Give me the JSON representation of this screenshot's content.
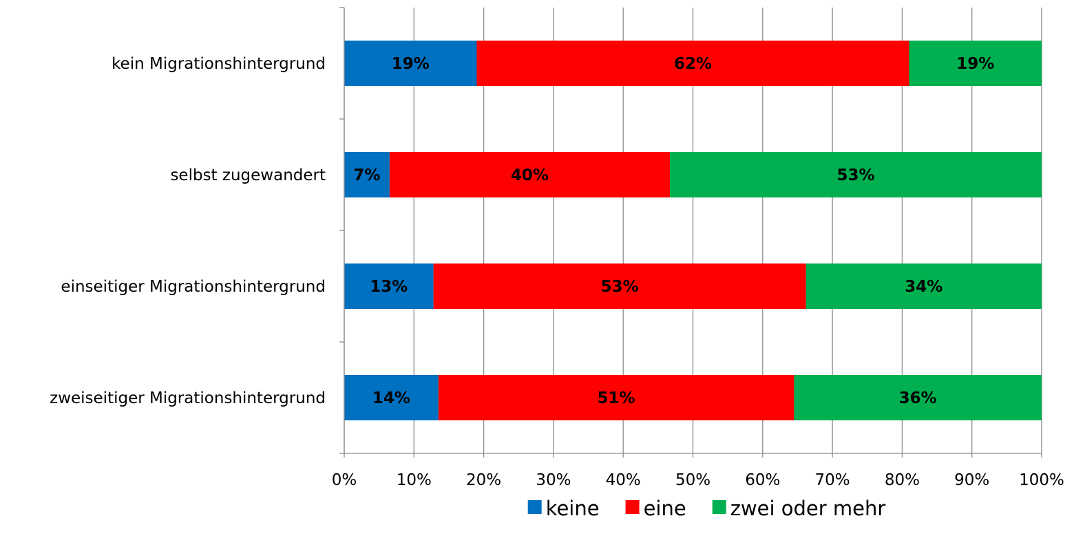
{
  "chart_data": {
    "type": "bar",
    "orientation": "horizontal",
    "stacked": true,
    "categories": [
      "kein Migrationshintergrund",
      "selbst zugewandert",
      "einseitiger Migrationshintergrund",
      "zweiseitiger Migrationshintergrund"
    ],
    "series": [
      {
        "name": "keine",
        "color": "#0070c0",
        "values": [
          19,
          6.5,
          12.8,
          13.5
        ],
        "labels": [
          "19%",
          "7%",
          "13%",
          "14%"
        ]
      },
      {
        "name": "eine",
        "color": "#ff0000",
        "values": [
          62,
          40.2,
          53.4,
          51
        ],
        "labels": [
          "62%",
          "40%",
          "53%",
          "51%"
        ]
      },
      {
        "name": "zwei oder mehr",
        "color": "#00b050",
        "values": [
          19,
          53.3,
          33.8,
          35.5
        ],
        "labels": [
          "19%",
          "53%",
          "34%",
          "36%"
        ]
      }
    ],
    "x_ticks": [
      "0%",
      "10%",
      "20%",
      "30%",
      "40%",
      "50%",
      "60%",
      "70%",
      "80%",
      "90%",
      "100%"
    ],
    "xlim": [
      0,
      100
    ],
    "grid": true,
    "legend_position": "bottom",
    "title": "",
    "xlabel": "",
    "ylabel": ""
  }
}
